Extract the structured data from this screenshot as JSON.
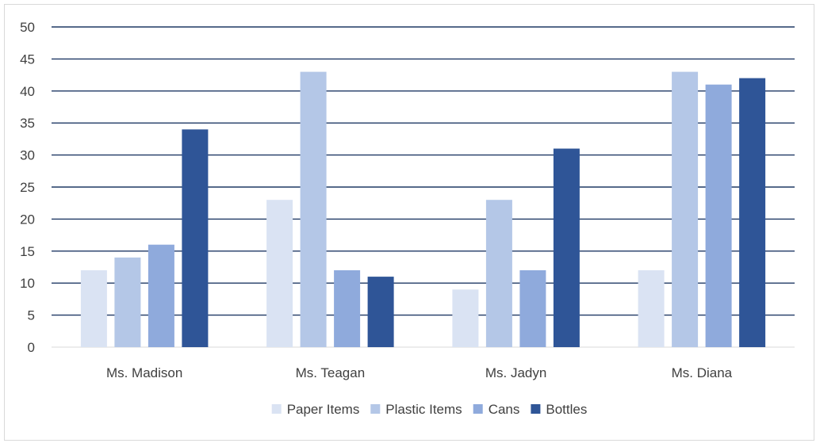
{
  "chart_data": {
    "type": "bar",
    "title": "",
    "xlabel": "",
    "ylabel": "",
    "categories": [
      "Ms. Madison",
      "Ms. Teagan",
      "Ms. Jadyn",
      "Ms. Diana"
    ],
    "series": [
      {
        "name": "Paper Items",
        "color": "#dae3f3",
        "values": [
          12,
          23,
          9,
          12
        ]
      },
      {
        "name": "Plastic Items",
        "color": "#b4c7e7",
        "values": [
          14,
          43,
          23,
          43
        ]
      },
      {
        "name": "Cans",
        "color": "#8faadc",
        "values": [
          16,
          12,
          12,
          41
        ]
      },
      {
        "name": "Bottles",
        "color": "#2f5597",
        "values": [
          34,
          11,
          31,
          42
        ]
      }
    ],
    "ylim": [
      0,
      50
    ],
    "yticks": [
      "0",
      "5",
      "10",
      "15",
      "20",
      "25",
      "30",
      "35",
      "40",
      "45",
      "50"
    ],
    "grid": true,
    "gridline_color": "#1f3864",
    "legend_position": "bottom"
  }
}
